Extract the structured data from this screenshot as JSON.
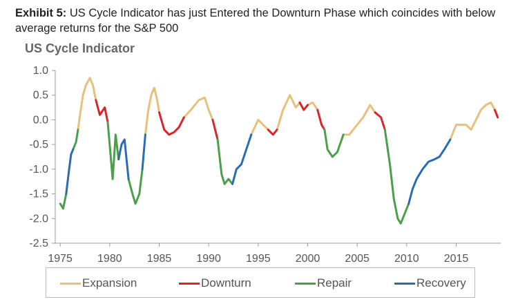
{
  "header": {
    "label": "Exhibit 5:",
    "text": "US Cycle Indicator has just Entered the Downturn Phase which coincides with below average returns for the S&P 500"
  },
  "colors": {
    "expansion": "#e8c07a",
    "downturn": "#d9252a",
    "repair": "#4aa04a",
    "recovery": "#2a6bb3",
    "axis": "#999999"
  },
  "chart_data": {
    "type": "line",
    "title": "US Cycle Indicator",
    "xlabel": "",
    "ylabel": "",
    "xlim": [
      1974.5,
      2019.5
    ],
    "ylim": [
      -2.5,
      1.0
    ],
    "y_ticks": [
      "1.0",
      "0.5",
      "0.0",
      "-0.5",
      "-1.0",
      "-1.5",
      "-2.0",
      "-2.5"
    ],
    "y_tick_values": [
      1.0,
      0.5,
      0.0,
      -0.5,
      -1.0,
      -1.5,
      -2.0,
      -2.5
    ],
    "x_ticks": [
      "1975",
      "1980",
      "1985",
      "1990",
      "1995",
      "2000",
      "2005",
      "2010",
      "2015"
    ],
    "x_tick_values": [
      1975,
      1980,
      1985,
      1990,
      1995,
      2000,
      2005,
      2010,
      2015
    ],
    "grid": false,
    "legend": "bottom",
    "series": [
      {
        "name": "Expansion",
        "color_key": "expansion",
        "segments": [
          [
            [
              1976.8,
              -0.2
            ],
            [
              1977.0,
              0.1
            ],
            [
              1977.3,
              0.5
            ],
            [
              1977.6,
              0.7
            ],
            [
              1978.0,
              0.85
            ],
            [
              1978.3,
              0.7
            ],
            [
              1978.6,
              0.4
            ]
          ],
          [
            [
              1983.6,
              -0.3
            ],
            [
              1983.9,
              0.2
            ],
            [
              1984.2,
              0.5
            ],
            [
              1984.5,
              0.65
            ],
            [
              1984.8,
              0.4
            ],
            [
              1985.0,
              0.15
            ]
          ],
          [
            [
              1987.5,
              0.05
            ],
            [
              1988.2,
              0.2
            ],
            [
              1989.0,
              0.4
            ],
            [
              1989.6,
              0.45
            ],
            [
              1990.0,
              0.2
            ],
            [
              1990.4,
              0.0
            ]
          ],
          [
            [
              1994.3,
              -0.3
            ],
            [
              1995.0,
              0.0
            ],
            [
              1995.5,
              -0.1
            ],
            [
              1996.0,
              -0.2
            ]
          ],
          [
            [
              1996.9,
              -0.2
            ],
            [
              1997.5,
              0.2
            ],
            [
              1998.2,
              0.5
            ],
            [
              1998.8,
              0.25
            ],
            [
              1999.2,
              0.35
            ]
          ],
          [
            [
              2000.0,
              0.3
            ],
            [
              2000.5,
              0.35
            ],
            [
              2001.0,
              0.2
            ]
          ],
          [
            [
              2003.6,
              -0.3
            ],
            [
              2004.2,
              -0.3
            ],
            [
              2005.0,
              -0.1
            ],
            [
              2005.6,
              0.05
            ],
            [
              2006.3,
              0.3
            ],
            [
              2006.8,
              0.15
            ]
          ],
          [
            [
              2014.4,
              -0.4
            ],
            [
              2015.0,
              -0.1
            ],
            [
              2016.0,
              -0.1
            ],
            [
              2016.5,
              -0.2
            ],
            [
              2017.0,
              0.0
            ],
            [
              2017.5,
              0.2
            ],
            [
              2018.0,
              0.3
            ],
            [
              2018.5,
              0.35
            ],
            [
              2018.9,
              0.2
            ]
          ]
        ]
      },
      {
        "name": "Downturn",
        "color_key": "downturn",
        "segments": [
          [
            [
              1978.6,
              0.4
            ],
            [
              1979.0,
              0.1
            ],
            [
              1979.5,
              0.25
            ],
            [
              1979.8,
              -0.05
            ]
          ],
          [
            [
              1985.0,
              0.15
            ],
            [
              1985.5,
              -0.2
            ],
            [
              1986.0,
              -0.3
            ],
            [
              1986.5,
              -0.25
            ],
            [
              1987.0,
              -0.15
            ],
            [
              1987.5,
              0.05
            ]
          ],
          [
            [
              1990.4,
              0.0
            ],
            [
              1990.9,
              -0.4
            ]
          ],
          [
            [
              1996.0,
              -0.2
            ],
            [
              1996.5,
              -0.3
            ],
            [
              1996.9,
              -0.2
            ]
          ],
          [
            [
              1999.2,
              0.35
            ],
            [
              1999.6,
              0.2
            ],
            [
              2000.0,
              0.3
            ]
          ],
          [
            [
              2001.0,
              0.2
            ],
            [
              2001.4,
              -0.1
            ],
            [
              2001.7,
              -0.2
            ]
          ],
          [
            [
              2006.8,
              0.15
            ],
            [
              2007.4,
              0.05
            ],
            [
              2007.8,
              -0.2
            ]
          ],
          [
            [
              2018.9,
              0.2
            ],
            [
              2019.2,
              0.05
            ]
          ]
        ]
      },
      {
        "name": "Repair",
        "color_key": "repair",
        "segments": [
          [
            [
              1975.0,
              -1.7
            ],
            [
              1975.3,
              -1.8
            ],
            [
              1975.6,
              -1.5
            ]
          ],
          [
            [
              1976.3,
              -0.6
            ],
            [
              1976.6,
              -0.45
            ],
            [
              1976.8,
              -0.2
            ]
          ],
          [
            [
              1979.8,
              -0.05
            ],
            [
              1980.0,
              -0.5
            ],
            [
              1980.3,
              -1.2
            ],
            [
              1980.6,
              -0.3
            ],
            [
              1980.9,
              -0.8
            ]
          ],
          [
            [
              1981.9,
              -1.2
            ],
            [
              1982.3,
              -1.5
            ],
            [
              1982.6,
              -1.7
            ],
            [
              1983.0,
              -1.5
            ],
            [
              1983.3,
              -1.0
            ]
          ],
          [
            [
              1990.9,
              -0.4
            ],
            [
              1991.3,
              -1.1
            ],
            [
              1991.6,
              -1.3
            ],
            [
              1992.0,
              -1.2
            ],
            [
              1992.4,
              -1.3
            ]
          ],
          [
            [
              2001.7,
              -0.2
            ],
            [
              2002.0,
              -0.6
            ],
            [
              2002.5,
              -0.75
            ],
            [
              2003.0,
              -0.65
            ],
            [
              2003.6,
              -0.3
            ]
          ],
          [
            [
              2007.8,
              -0.2
            ],
            [
              2008.3,
              -0.9
            ],
            [
              2008.7,
              -1.6
            ],
            [
              2009.1,
              -2.0
            ],
            [
              2009.4,
              -2.1
            ],
            [
              2009.8,
              -1.9
            ],
            [
              2010.2,
              -1.7
            ]
          ]
        ]
      },
      {
        "name": "Recovery",
        "color_key": "recovery",
        "segments": [
          [
            [
              1975.6,
              -1.5
            ],
            [
              1975.9,
              -1.0
            ],
            [
              1976.1,
              -0.7
            ],
            [
              1976.3,
              -0.6
            ]
          ],
          [
            [
              1980.9,
              -0.8
            ],
            [
              1981.2,
              -0.5
            ],
            [
              1981.5,
              -0.4
            ],
            [
              1981.9,
              -1.2
            ]
          ],
          [
            [
              1983.3,
              -1.0
            ],
            [
              1983.6,
              -0.3
            ]
          ],
          [
            [
              1992.4,
              -1.3
            ],
            [
              1992.8,
              -1.0
            ],
            [
              1993.3,
              -0.9
            ],
            [
              1993.8,
              -0.6
            ],
            [
              1994.3,
              -0.3
            ]
          ],
          [
            [
              2010.2,
              -1.7
            ],
            [
              2010.6,
              -1.4
            ],
            [
              2011.0,
              -1.2
            ],
            [
              2011.6,
              -1.0
            ],
            [
              2012.2,
              -0.85
            ],
            [
              2012.8,
              -0.8
            ],
            [
              2013.3,
              -0.75
            ],
            [
              2013.8,
              -0.6
            ],
            [
              2014.4,
              -0.4
            ]
          ]
        ]
      }
    ]
  }
}
